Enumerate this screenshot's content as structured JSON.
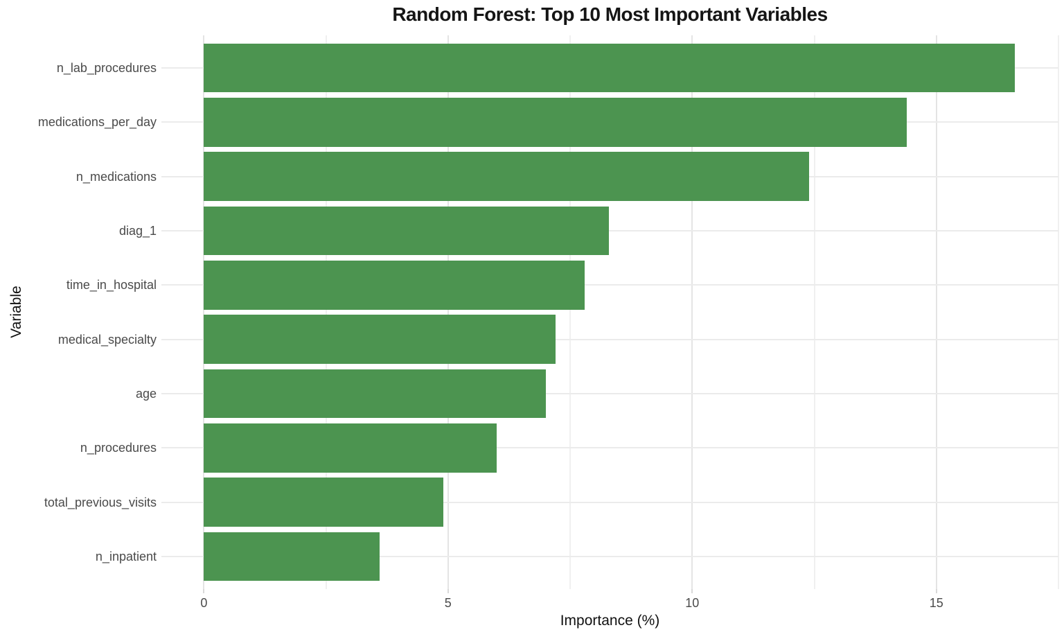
{
  "chart_data": {
    "type": "bar",
    "orientation": "horizontal",
    "title": "Random Forest: Top 10 Most Important Variables",
    "xlabel": "Importance (%)",
    "ylabel": "Variable",
    "categories": [
      "n_lab_procedures",
      "medications_per_day",
      "n_medications",
      "diag_1",
      "time_in_hospital",
      "medical_specialty",
      "age",
      "n_procedures",
      "total_previous_visits",
      "n_inpatient"
    ],
    "values": [
      16.6,
      14.4,
      12.4,
      8.3,
      7.8,
      7.2,
      7.0,
      6.0,
      4.9,
      3.6
    ],
    "xlim": [
      -0.87,
      17.5
    ],
    "x_major_ticks": [
      0,
      5,
      10,
      15
    ],
    "x_minor_ticks": [
      2.5,
      7.5,
      12.5,
      17.5
    ],
    "x_tick_labels": [
      "0",
      "5",
      "10",
      "15"
    ],
    "bar_color": "#4c9450",
    "gridline_major_color": "#e4e4e4",
    "gridline_minor_color": "#f0f0f0",
    "background": "#ffffff",
    "bar_relative_height": 0.9,
    "legend": "none",
    "grid": true
  }
}
